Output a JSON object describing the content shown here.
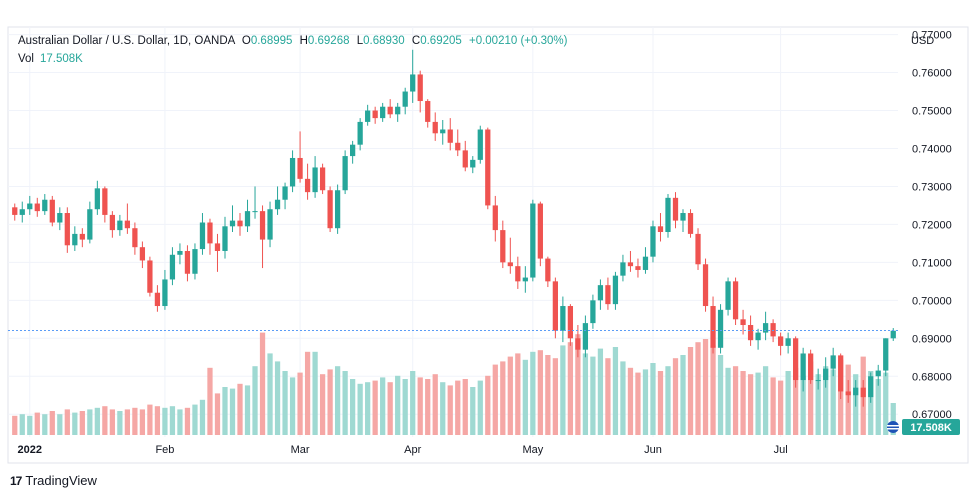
{
  "header": {
    "symbol": "Australian Dollar / U.S. Dollar, 1D, OANDA",
    "o_label": "O",
    "o_value": "0.68995",
    "h_label": "H",
    "h_value": "0.69268",
    "l_label": "L",
    "l_value": "0.68930",
    "c_label": "C",
    "c_value": "0.69205",
    "change": "+0.00210 (+0.30%)",
    "vol_label": "Vol",
    "vol_value": "17.508K",
    "currency": "USD"
  },
  "footer": {
    "brand": "TradingView",
    "logo_text": "17"
  },
  "colors": {
    "up": "#26a69a",
    "down": "#ef5350",
    "up_vol": "#9fd9d2",
    "down_vol": "#f5a7a5",
    "grid": "#f0f3fa",
    "last_price": "#5b9cf6",
    "badge": "#26a69a"
  },
  "chart_data": {
    "type": "candlestick",
    "y_axis": {
      "min": 0.664,
      "max": 0.772,
      "ticks": [
        "0.77000",
        "0.76000",
        "0.75000",
        "0.74000",
        "0.73000",
        "0.72000",
        "0.71000",
        "0.70000",
        "0.69000",
        "0.68000",
        "0.67000"
      ]
    },
    "x_axis": {
      "labels": [
        {
          "text": "2022",
          "index": 2
        },
        {
          "text": "Feb",
          "index": 20
        },
        {
          "text": "Mar",
          "index": 38
        },
        {
          "text": "Apr",
          "index": 53
        },
        {
          "text": "May",
          "index": 69
        },
        {
          "text": "Jun",
          "index": 85
        },
        {
          "text": "Jul",
          "index": 102
        }
      ]
    },
    "last_price": 0.69205,
    "volume_badge": "17.508K",
    "candles": [
      [
        0.7245,
        0.7255,
        0.721,
        0.7225,
        1.2
      ],
      [
        0.7225,
        0.726,
        0.7205,
        0.724,
        1.3
      ],
      [
        0.724,
        0.7275,
        0.7225,
        0.7255,
        1.2
      ],
      [
        0.7255,
        0.727,
        0.722,
        0.7235,
        1.4
      ],
      [
        0.7235,
        0.728,
        0.7225,
        0.7265,
        1.3
      ],
      [
        0.7265,
        0.7275,
        0.7195,
        0.7205,
        1.5
      ],
      [
        0.7205,
        0.7245,
        0.7185,
        0.723,
        1.3
      ],
      [
        0.723,
        0.7245,
        0.7125,
        0.7145,
        1.6
      ],
      [
        0.7145,
        0.7195,
        0.713,
        0.7175,
        1.4
      ],
      [
        0.7175,
        0.719,
        0.714,
        0.716,
        1.5
      ],
      [
        0.716,
        0.726,
        0.715,
        0.724,
        1.6
      ],
      [
        0.724,
        0.7315,
        0.7225,
        0.7295,
        1.7
      ],
      [
        0.7295,
        0.73,
        0.7205,
        0.7225,
        1.8
      ],
      [
        0.7225,
        0.7235,
        0.7165,
        0.7185,
        1.6
      ],
      [
        0.7185,
        0.7225,
        0.717,
        0.721,
        1.5
      ],
      [
        0.721,
        0.7255,
        0.7175,
        0.719,
        1.6
      ],
      [
        0.719,
        0.7205,
        0.712,
        0.714,
        1.7
      ],
      [
        0.714,
        0.7155,
        0.7085,
        0.7105,
        1.6
      ],
      [
        0.7105,
        0.7115,
        0.701,
        0.702,
        1.9
      ],
      [
        0.702,
        0.704,
        0.697,
        0.6985,
        1.8
      ],
      [
        0.6985,
        0.708,
        0.6975,
        0.7055,
        1.7
      ],
      [
        0.7055,
        0.714,
        0.704,
        0.712,
        1.8
      ],
      [
        0.712,
        0.715,
        0.7095,
        0.713,
        1.6
      ],
      [
        0.713,
        0.7145,
        0.705,
        0.707,
        1.7
      ],
      [
        0.707,
        0.715,
        0.7055,
        0.7135,
        1.9
      ],
      [
        0.7135,
        0.723,
        0.712,
        0.7205,
        2.2
      ],
      [
        0.7205,
        0.7215,
        0.712,
        0.715,
        4.2
      ],
      [
        0.715,
        0.7175,
        0.7075,
        0.713,
        2.6
      ],
      [
        0.713,
        0.722,
        0.711,
        0.7195,
        3.0
      ],
      [
        0.7195,
        0.725,
        0.718,
        0.721,
        2.9
      ],
      [
        0.721,
        0.723,
        0.717,
        0.7195,
        3.2
      ],
      [
        0.7195,
        0.7265,
        0.718,
        0.7235,
        3.1
      ],
      [
        0.7235,
        0.73,
        0.7215,
        0.7235,
        4.3
      ],
      [
        0.7235,
        0.725,
        0.7085,
        0.716,
        6.4
      ],
      [
        0.716,
        0.726,
        0.714,
        0.724,
        5.1
      ],
      [
        0.724,
        0.73,
        0.7225,
        0.7265,
        4.6
      ],
      [
        0.7265,
        0.731,
        0.724,
        0.73,
        4.0
      ],
      [
        0.73,
        0.7395,
        0.7285,
        0.7375,
        3.6
      ],
      [
        0.7375,
        0.7445,
        0.731,
        0.732,
        3.9
      ],
      [
        0.732,
        0.736,
        0.7265,
        0.7285,
        5.2
      ],
      [
        0.7285,
        0.738,
        0.727,
        0.735,
        5.2
      ],
      [
        0.735,
        0.736,
        0.728,
        0.729,
        3.8
      ],
      [
        0.729,
        0.73,
        0.718,
        0.719,
        4.1
      ],
      [
        0.719,
        0.7305,
        0.7175,
        0.729,
        4.3
      ],
      [
        0.729,
        0.7395,
        0.728,
        0.738,
        4.0
      ],
      [
        0.738,
        0.742,
        0.736,
        0.741,
        3.5
      ],
      [
        0.741,
        0.748,
        0.7395,
        0.747,
        3.2
      ],
      [
        0.747,
        0.7515,
        0.746,
        0.75,
        3.3
      ],
      [
        0.75,
        0.751,
        0.7465,
        0.748,
        3.4
      ],
      [
        0.748,
        0.752,
        0.747,
        0.751,
        3.6
      ],
      [
        0.751,
        0.753,
        0.748,
        0.749,
        3.3
      ],
      [
        0.749,
        0.752,
        0.747,
        0.751,
        3.7
      ],
      [
        0.751,
        0.756,
        0.749,
        0.755,
        3.5
      ],
      [
        0.755,
        0.766,
        0.752,
        0.7595,
        4.0
      ],
      [
        0.7595,
        0.7605,
        0.7495,
        0.7525,
        3.6
      ],
      [
        0.7525,
        0.753,
        0.7455,
        0.747,
        3.5
      ],
      [
        0.747,
        0.7495,
        0.742,
        0.744,
        3.8
      ],
      [
        0.744,
        0.7475,
        0.741,
        0.745,
        3.3
      ],
      [
        0.745,
        0.748,
        0.7395,
        0.7415,
        3.1
      ],
      [
        0.7415,
        0.745,
        0.738,
        0.7395,
        3.4
      ],
      [
        0.7395,
        0.742,
        0.734,
        0.735,
        3.5
      ],
      [
        0.735,
        0.738,
        0.7335,
        0.737,
        3.0
      ],
      [
        0.737,
        0.746,
        0.736,
        0.745,
        3.4
      ],
      [
        0.745,
        0.7455,
        0.724,
        0.725,
        3.7
      ],
      [
        0.725,
        0.7275,
        0.7155,
        0.7185,
        4.4
      ],
      [
        0.7185,
        0.721,
        0.7085,
        0.71,
        4.6
      ],
      [
        0.71,
        0.7165,
        0.707,
        0.709,
        4.9
      ],
      [
        0.709,
        0.7115,
        0.703,
        0.705,
        5.1
      ],
      [
        0.705,
        0.709,
        0.702,
        0.706,
        4.7
      ],
      [
        0.706,
        0.7265,
        0.705,
        0.7255,
        5.2
      ],
      [
        0.7255,
        0.726,
        0.709,
        0.711,
        5.3
      ],
      [
        0.711,
        0.7115,
        0.7035,
        0.705,
        5.0
      ],
      [
        0.705,
        0.706,
        0.69,
        0.692,
        4.8
      ],
      [
        0.692,
        0.701,
        0.689,
        0.6985,
        5.6
      ],
      [
        0.6985,
        0.699,
        0.688,
        0.69,
        5.8
      ],
      [
        0.69,
        0.6935,
        0.685,
        0.687,
        6.3
      ],
      [
        0.687,
        0.696,
        0.685,
        0.694,
        5.1
      ],
      [
        0.694,
        0.7015,
        0.6925,
        0.7,
        4.9
      ],
      [
        0.7,
        0.7055,
        0.6975,
        0.704,
        5.4
      ],
      [
        0.704,
        0.706,
        0.6975,
        0.699,
        4.8
      ],
      [
        0.699,
        0.7075,
        0.6975,
        0.7065,
        5.5
      ],
      [
        0.7065,
        0.712,
        0.705,
        0.71,
        4.6
      ],
      [
        0.71,
        0.713,
        0.7075,
        0.709,
        4.2
      ],
      [
        0.709,
        0.711,
        0.706,
        0.708,
        3.9
      ],
      [
        0.708,
        0.714,
        0.707,
        0.7115,
        4.1
      ],
      [
        0.7115,
        0.721,
        0.71,
        0.7195,
        4.5
      ],
      [
        0.7195,
        0.723,
        0.7155,
        0.718,
        4.0
      ],
      [
        0.718,
        0.728,
        0.7165,
        0.727,
        4.3
      ],
      [
        0.727,
        0.7285,
        0.719,
        0.721,
        4.8
      ],
      [
        0.721,
        0.724,
        0.718,
        0.723,
        5.0
      ],
      [
        0.723,
        0.724,
        0.7165,
        0.7175,
        5.5
      ],
      [
        0.7175,
        0.719,
        0.708,
        0.7095,
        5.8
      ],
      [
        0.7095,
        0.711,
        0.697,
        0.6985,
        6.0
      ],
      [
        0.6985,
        0.701,
        0.686,
        0.6875,
        5.6
      ],
      [
        0.6875,
        0.699,
        0.686,
        0.6975,
        5.0
      ],
      [
        0.6975,
        0.706,
        0.696,
        0.705,
        4.2
      ],
      [
        0.705,
        0.706,
        0.6935,
        0.695,
        4.3
      ],
      [
        0.695,
        0.6975,
        0.691,
        0.6935,
        4.0
      ],
      [
        0.6935,
        0.696,
        0.688,
        0.6895,
        3.8
      ],
      [
        0.6895,
        0.6925,
        0.687,
        0.6915,
        3.9
      ],
      [
        0.6915,
        0.697,
        0.6895,
        0.694,
        4.3
      ],
      [
        0.694,
        0.695,
        0.689,
        0.6905,
        3.6
      ],
      [
        0.6905,
        0.6915,
        0.6855,
        0.688,
        3.4
      ],
      [
        0.688,
        0.6915,
        0.686,
        0.69,
        4.0
      ],
      [
        0.69,
        0.6905,
        0.677,
        0.679,
        4.2
      ],
      [
        0.679,
        0.6875,
        0.676,
        0.686,
        3.7
      ],
      [
        0.686,
        0.687,
        0.678,
        0.679,
        4.6
      ],
      [
        0.679,
        0.682,
        0.6765,
        0.679,
        3.8
      ],
      [
        0.679,
        0.685,
        0.677,
        0.682,
        4.3
      ],
      [
        0.682,
        0.6875,
        0.68,
        0.6855,
        4.1
      ],
      [
        0.6855,
        0.686,
        0.674,
        0.676,
        4.7
      ],
      [
        0.676,
        0.679,
        0.673,
        0.675,
        4.4
      ],
      [
        0.675,
        0.679,
        0.672,
        0.677,
        3.8
      ],
      [
        0.677,
        0.679,
        0.672,
        0.6745,
        4.9
      ],
      [
        0.6745,
        0.681,
        0.673,
        0.68,
        4.0
      ],
      [
        0.68,
        0.683,
        0.6775,
        0.6815,
        3.5
      ],
      [
        0.6815,
        0.69,
        0.68,
        0.69,
        3.9
      ],
      [
        0.69,
        0.6927,
        0.6893,
        0.692,
        2.0
      ]
    ]
  }
}
